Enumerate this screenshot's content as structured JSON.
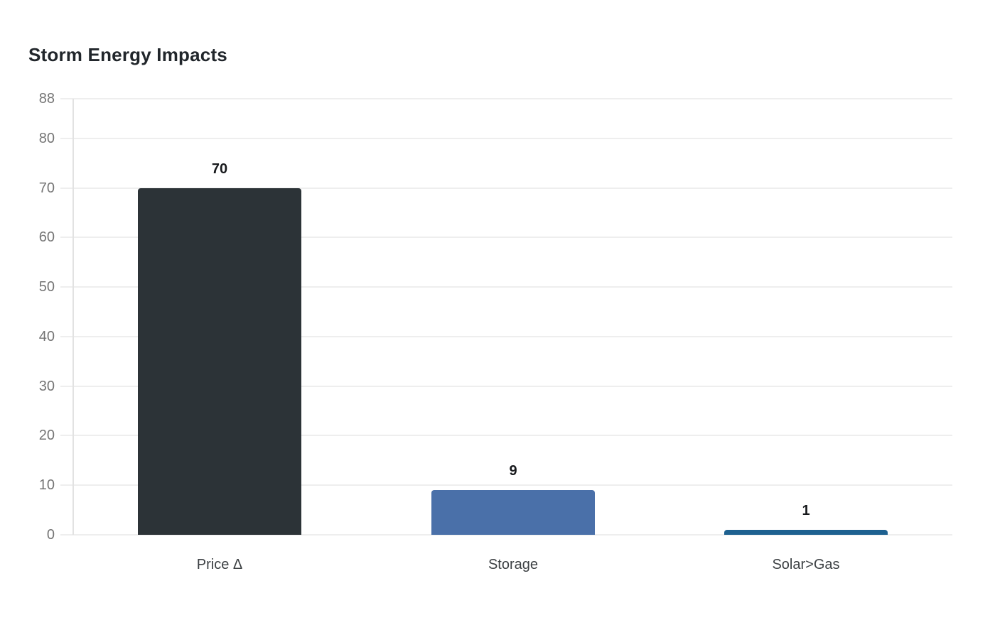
{
  "chart_data": {
    "type": "bar",
    "title": "Storm Energy Impacts",
    "categories": [
      "Price Δ",
      "Storage",
      "Solar>Gas"
    ],
    "values": [
      70,
      9,
      1
    ],
    "value_labels": [
      "70",
      "9",
      "1"
    ],
    "bar_colors": [
      "#2c3337",
      "#4a70a9",
      "#1e6190"
    ],
    "yticks": [
      0,
      10,
      20,
      30,
      40,
      50,
      60,
      70,
      80,
      88
    ],
    "ylim": [
      0,
      88
    ],
    "xlabel": "",
    "ylabel": "",
    "grid": true,
    "legend": false,
    "background": "#ffffff",
    "colors": {
      "title": "#21262b",
      "tick_label": "#757575",
      "category_label": "#3c4043",
      "value_label": "#17191c",
      "gridline": "#eeeeee",
      "axis_line": "#e2e2e2"
    }
  }
}
